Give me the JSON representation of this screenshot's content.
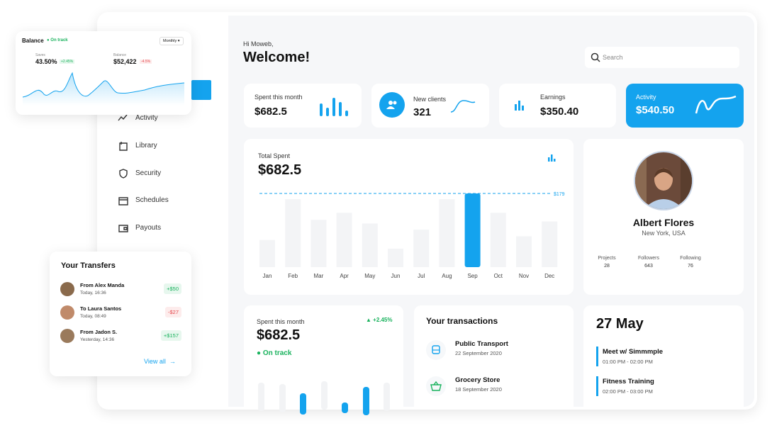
{
  "balance_card": {
    "title": "Balance",
    "status": "On track",
    "period": "Monthly",
    "stats": [
      {
        "label": "Saves",
        "value": "43.50%",
        "change": "+2.45%"
      },
      {
        "label": "Balance",
        "value": "$52,422",
        "change": "-4.5%"
      }
    ]
  },
  "sidebar": {
    "items": [
      "Activity",
      "Library",
      "Security",
      "Schedules",
      "Payouts"
    ]
  },
  "header": {
    "greeting": "Hi Moweb,",
    "title": "Welcome!",
    "search": "Search"
  },
  "stat_cards": [
    {
      "label": "Spent this month",
      "value": "$682.5"
    },
    {
      "label": "New clients",
      "value": "321"
    },
    {
      "label": "Earnings",
      "value": "$350.40"
    },
    {
      "label": "Activity",
      "value": "$540.50"
    }
  ],
  "total_spent": {
    "label": "Total Spent",
    "value": "$682.5",
    "target": {
      "value": 179,
      "label": "$179"
    },
    "categories": [
      "Jan",
      "Feb",
      "Mar",
      "Apr",
      "May",
      "Jun",
      "Jul",
      "Aug",
      "Sep",
      "Oct",
      "Nov",
      "Dec"
    ],
    "values": [
      66,
      165,
      115,
      132,
      106,
      45,
      91,
      165,
      179,
      132,
      75,
      111
    ],
    "highlight": 8,
    "color": "#14a3ee",
    "bar_color": "#f3f4f6"
  },
  "profile": {
    "name": "Albert Flores",
    "location": "New York, USA",
    "stats": [
      {
        "label": "Projects",
        "value": "28"
      },
      {
        "label": "Followers",
        "value": "643"
      },
      {
        "label": "Following",
        "value": "76"
      }
    ]
  },
  "transfers": {
    "title": "Your Transfers",
    "items": [
      {
        "name": "From Alex Manda",
        "time": "Today, 16:36",
        "amount": "+$50"
      },
      {
        "name": "To Laura Santos",
        "time": "Today, 08:49",
        "amount": "-$27"
      },
      {
        "name": "From Jadon S.",
        "time": "Yesterday, 14:36",
        "amount": "+$157"
      }
    ],
    "link": "View all"
  },
  "spent_card": {
    "label": "Spent this month",
    "value": "$682.5",
    "change": "+2.45%",
    "status": "On track"
  },
  "transactions": {
    "title": "Your transactions",
    "items": [
      {
        "name": "Public Transport",
        "date": "22 September 2020"
      },
      {
        "name": "Grocery Store",
        "date": "18 September 2020"
      }
    ]
  },
  "schedule": {
    "date": "27 May",
    "items": [
      {
        "name": "Meet w/ Simmmple",
        "time": "01:00 PM - 02:00 PM"
      },
      {
        "name": "Fitness Training",
        "time": "02:00 PM - 03:00 PM"
      }
    ]
  }
}
